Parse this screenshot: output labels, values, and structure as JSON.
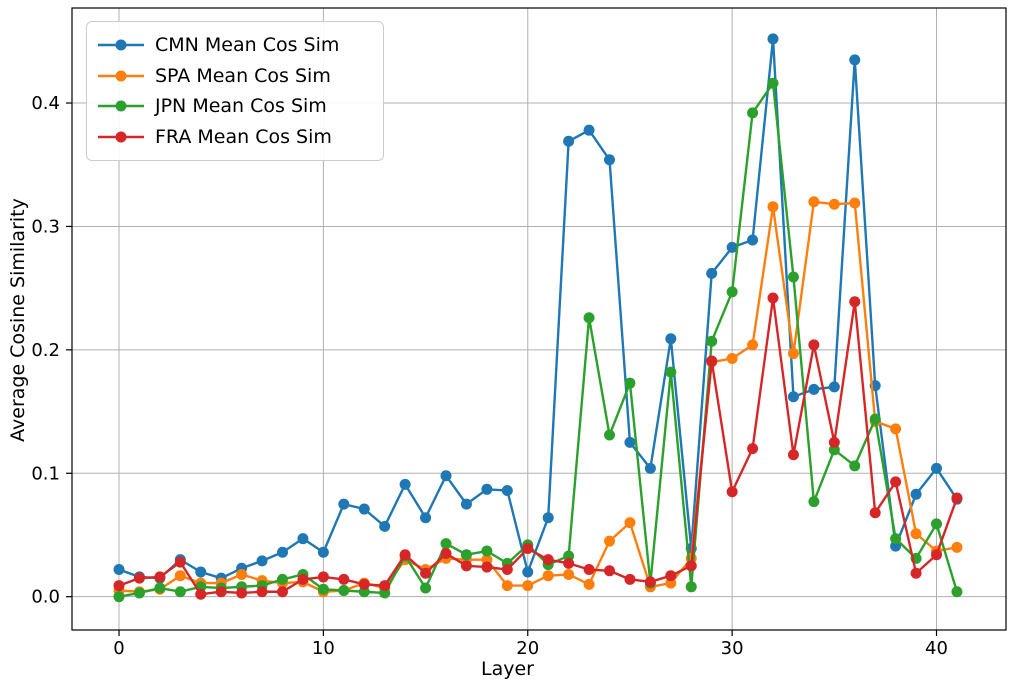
{
  "figure": {
    "background": "#ffffff",
    "grid_color": "#b0b0b0",
    "spine_color": "#000000"
  },
  "chart_data": {
    "type": "line",
    "title": "",
    "xlabel": "Layer",
    "ylabel": "Average Cosine Similarity",
    "grid": true,
    "legend_position": "upper left",
    "x_ticks": [
      0,
      10,
      20,
      30,
      40
    ],
    "y_ticks": [
      0.0,
      0.1,
      0.2,
      0.3,
      0.4
    ],
    "xlim": [
      -2.3,
      43.4
    ],
    "ylim": [
      -0.027,
      0.477
    ],
    "layers": [
      0,
      1,
      2,
      3,
      4,
      5,
      6,
      7,
      8,
      9,
      10,
      11,
      12,
      13,
      14,
      15,
      16,
      17,
      18,
      19,
      20,
      21,
      22,
      23,
      24,
      25,
      26,
      27,
      28,
      29,
      30,
      31,
      32,
      33,
      34,
      35,
      36,
      37,
      38,
      39,
      40,
      41
    ],
    "series": [
      {
        "name": "CMN Mean Cos Sim",
        "color": "#1f77b4",
        "values": [
          0.022,
          0.016,
          0.015,
          0.03,
          0.02,
          0.015,
          0.023,
          0.029,
          0.036,
          0.047,
          0.036,
          0.075,
          0.071,
          0.057,
          0.091,
          0.064,
          0.098,
          0.075,
          0.087,
          0.086,
          0.02,
          0.064,
          0.369,
          0.378,
          0.354,
          0.125,
          0.104,
          0.209,
          0.039,
          0.262,
          0.283,
          0.289,
          0.452,
          0.162,
          0.168,
          0.17,
          0.435,
          0.171,
          0.041,
          0.083,
          0.104,
          0.079
        ]
      },
      {
        "name": "SPA Mean Cos Sim",
        "color": "#ff7f0e",
        "values": [
          0.005,
          0.004,
          0.006,
          0.017,
          0.011,
          0.011,
          0.018,
          0.013,
          0.011,
          0.012,
          0.004,
          0.005,
          0.011,
          0.007,
          0.03,
          0.022,
          0.031,
          0.03,
          0.03,
          0.009,
          0.009,
          0.017,
          0.018,
          0.01,
          0.045,
          0.06,
          0.008,
          0.011,
          0.031,
          0.19,
          0.193,
          0.204,
          0.316,
          0.197,
          0.32,
          0.318,
          0.319,
          0.142,
          0.136,
          0.051,
          0.037,
          0.04
        ]
      },
      {
        "name": "JPN Mean Cos Sim",
        "color": "#2ca02c",
        "values": [
          0.0,
          0.003,
          0.007,
          0.004,
          0.008,
          0.007,
          0.008,
          0.009,
          0.014,
          0.018,
          0.006,
          0.005,
          0.004,
          0.003,
          0.033,
          0.007,
          0.043,
          0.034,
          0.037,
          0.027,
          0.042,
          0.026,
          0.033,
          0.226,
          0.131,
          0.173,
          0.011,
          0.182,
          0.008,
          0.207,
          0.247,
          0.392,
          0.416,
          0.259,
          0.077,
          0.119,
          0.106,
          0.144,
          0.047,
          0.031,
          0.059,
          0.004
        ]
      },
      {
        "name": "FRA Mean Cos Sim",
        "color": "#d62728",
        "values": [
          0.009,
          0.015,
          0.016,
          0.028,
          0.002,
          0.004,
          0.003,
          0.004,
          0.004,
          0.014,
          0.016,
          0.014,
          0.01,
          0.009,
          0.034,
          0.019,
          0.035,
          0.025,
          0.024,
          0.022,
          0.039,
          0.03,
          0.027,
          0.022,
          0.021,
          0.014,
          0.012,
          0.017,
          0.025,
          0.191,
          0.085,
          0.12,
          0.242,
          0.115,
          0.204,
          0.125,
          0.239,
          0.068,
          0.093,
          0.019,
          0.034,
          0.08
        ]
      }
    ]
  }
}
